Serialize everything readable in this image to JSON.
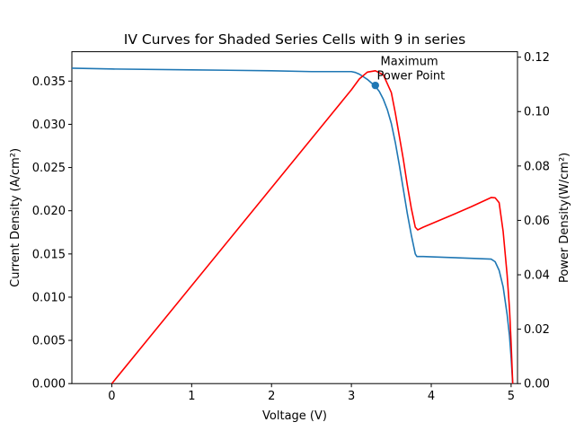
{
  "chart_data": {
    "type": "line",
    "title": "IV Curves for Shaded Series Cells with 9 in series",
    "xlabel": "Voltage (V)",
    "ylabel": "Current Density (A/cm²)",
    "y2label": "Power Density(W/cm²)",
    "xlim": [
      -0.5,
      5.08
    ],
    "ylim": [
      0,
      0.0384
    ],
    "y2lim": [
      0,
      0.122
    ],
    "x_ticks": [
      "0",
      "1",
      "2",
      "3",
      "4",
      "5"
    ],
    "y_ticks": [
      "0.000",
      "0.005",
      "0.010",
      "0.015",
      "0.020",
      "0.025",
      "0.030",
      "0.035"
    ],
    "y2_ticks": [
      "0.00",
      "0.02",
      "0.04",
      "0.06",
      "0.08",
      "0.10",
      "0.12"
    ],
    "grid": false,
    "colors": {
      "current": "#1f77b4",
      "power": "#ff0000",
      "marker": "#1f77b4"
    },
    "series": [
      {
        "axis": "left",
        "x": [
          -0.5,
          0,
          1,
          2,
          2.5,
          3.0,
          3.05,
          3.1,
          3.15,
          3.2,
          3.25,
          3.3,
          3.35,
          3.4,
          3.45,
          3.5,
          3.55,
          3.6,
          3.65,
          3.7,
          3.75,
          3.8,
          3.82,
          3.9,
          4.2,
          4.5,
          4.75,
          4.8,
          4.85,
          4.9,
          4.95,
          4.98,
          5.0,
          5.02
        ],
        "y": [
          0.0365,
          0.0364,
          0.0363,
          0.0362,
          0.0361,
          0.0361,
          0.036,
          0.0358,
          0.0355,
          0.0352,
          0.0348,
          0.0344,
          0.0338,
          0.0329,
          0.0317,
          0.0301,
          0.0279,
          0.0253,
          0.0225,
          0.0197,
          0.0172,
          0.015,
          0.0147,
          0.0147,
          0.0146,
          0.0145,
          0.0144,
          0.0141,
          0.0131,
          0.0112,
          0.008,
          0.0055,
          0.003,
          0.0
        ]
      },
      {
        "axis": "right",
        "x": [
          0,
          3.0,
          3.1,
          3.2,
          3.3,
          3.4,
          3.5,
          3.55,
          3.6,
          3.65,
          3.7,
          3.75,
          3.8,
          3.83,
          3.9,
          4.2,
          4.5,
          4.75,
          4.8,
          4.85,
          4.9,
          4.95,
          4.98,
          5.0,
          5.02
        ],
        "y": [
          0.0,
          0.108,
          0.112,
          0.1145,
          0.115,
          0.1135,
          0.107,
          0.0995,
          0.091,
          0.0825,
          0.073,
          0.0645,
          0.0575,
          0.0565,
          0.0575,
          0.0612,
          0.065,
          0.0684,
          0.0683,
          0.0665,
          0.056,
          0.04,
          0.0275,
          0.015,
          0.0
        ]
      }
    ],
    "marker": {
      "x": 3.3,
      "y": 0.0345
    },
    "annotation": {
      "lines": [
        "Maximum",
        "Power Point"
      ],
      "x": 3.32,
      "y": 0.0352
    }
  }
}
